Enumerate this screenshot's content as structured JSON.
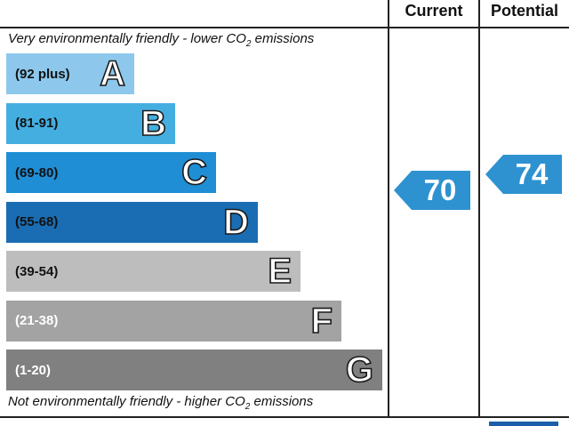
{
  "header": {
    "current_label": "Current",
    "potential_label": "Potential"
  },
  "notes": {
    "top_prefix": "Very environmentally friendly - lower C",
    "top_o": "O",
    "top_sub": "2",
    "top_suffix": " emissions",
    "bottom_prefix": "Not environmentally friendly - higher C",
    "bottom_o": "O",
    "bottom_sub": "2",
    "bottom_suffix": " emissions"
  },
  "colors": {
    "pointer": "#2e92d0",
    "dark_text": "#111111",
    "light_text": "#ffffff"
  },
  "chart_data": {
    "type": "bar",
    "bands": [
      {
        "letter": "A",
        "range": "(92 plus)",
        "min": 92,
        "max": null,
        "color": "#8dc8ec",
        "text": "dark"
      },
      {
        "letter": "B",
        "range": "(81-91)",
        "min": 81,
        "max": 91,
        "color": "#45aee0",
        "text": "dark"
      },
      {
        "letter": "C",
        "range": "(69-80)",
        "min": 69,
        "max": 80,
        "color": "#1f8ed4",
        "text": "dark"
      },
      {
        "letter": "D",
        "range": "(55-68)",
        "min": 55,
        "max": 68,
        "color": "#1a6db3",
        "text": "dark"
      },
      {
        "letter": "E",
        "range": "(39-54)",
        "min": 39,
        "max": 54,
        "color": "#bdbdbd",
        "text": "dark"
      },
      {
        "letter": "F",
        "range": "(21-38)",
        "min": 21,
        "max": 38,
        "color": "#a3a3a3",
        "text": "light"
      },
      {
        "letter": "G",
        "range": "(1-20)",
        "min": 1,
        "max": 20,
        "color": "#808080",
        "text": "light"
      }
    ],
    "current": {
      "value": "70",
      "band": "C"
    },
    "potential": {
      "value": "74",
      "band": "C"
    }
  }
}
